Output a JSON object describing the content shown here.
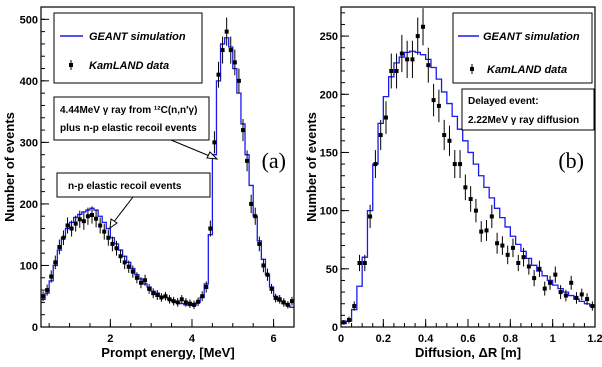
{
  "colors": {
    "simulation": "#1a1aee",
    "data": "#000000",
    "frame": "#000000"
  },
  "chart_data": [
    {
      "type": "line",
      "panel_label": "(a)",
      "xlabel": "Prompt energy, [MeV]",
      "ylabel": "Number of events",
      "xlim": [
        0.3,
        6.5
      ],
      "ylim": [
        0,
        520
      ],
      "xticks": [
        2,
        4,
        6
      ],
      "yticks": [
        0,
        100,
        200,
        300,
        400,
        500
      ],
      "xtick_labels": [
        "2",
        "4",
        "6"
      ],
      "ytick_labels": [
        "0",
        "100",
        "200",
        "300",
        "400",
        "500"
      ],
      "legend": {
        "position": "top-left",
        "entries": [
          "GEANT simulation",
          "KamLAND data"
        ]
      },
      "annotations": {
        "carbon_line1": "4.44MeV γ ray from ¹²C(n,n′γ)",
        "carbon_line2": "plus n-p elastic recoil events",
        "recoil": "n-p elastic recoil events"
      },
      "series": [
        {
          "name": "GEANT simulation",
          "style": "step",
          "bin_width": 0.1,
          "x": [
            0.3,
            0.4,
            0.5,
            0.6,
            0.7,
            0.8,
            0.9,
            1.0,
            1.1,
            1.2,
            1.3,
            1.4,
            1.5,
            1.6,
            1.7,
            1.8,
            1.9,
            2.0,
            2.1,
            2.2,
            2.3,
            2.4,
            2.5,
            2.6,
            2.7,
            2.8,
            2.9,
            3.0,
            3.1,
            3.2,
            3.3,
            3.4,
            3.5,
            3.6,
            3.7,
            3.8,
            3.9,
            4.0,
            4.1,
            4.2,
            4.3,
            4.4,
            4.5,
            4.6,
            4.7,
            4.8,
            4.9,
            5.0,
            5.1,
            5.2,
            5.3,
            5.4,
            5.5,
            5.6,
            5.7,
            5.8,
            5.9,
            6.0,
            6.1,
            6.2,
            6.3,
            6.4
          ],
          "values": [
            45,
            55,
            75,
            100,
            125,
            145,
            160,
            170,
            178,
            183,
            187,
            190,
            193,
            190,
            180,
            170,
            160,
            145,
            135,
            125,
            115,
            105,
            95,
            85,
            78,
            70,
            65,
            58,
            55,
            50,
            48,
            45,
            42,
            40,
            38,
            36,
            35,
            35,
            40,
            48,
            70,
            150,
            280,
            400,
            460,
            470,
            455,
            420,
            380,
            330,
            280,
            230,
            180,
            140,
            110,
            85,
            65,
            50,
            42,
            38,
            35,
            32
          ]
        },
        {
          "name": "KamLAND data",
          "style": "points",
          "x": [
            0.35,
            0.45,
            0.55,
            0.65,
            0.75,
            0.85,
            0.95,
            1.05,
            1.15,
            1.25,
            1.35,
            1.45,
            1.55,
            1.65,
            1.75,
            1.85,
            1.95,
            2.05,
            2.15,
            2.25,
            2.35,
            2.45,
            2.55,
            2.65,
            2.75,
            2.85,
            2.95,
            3.05,
            3.15,
            3.25,
            3.35,
            3.45,
            3.55,
            3.65,
            3.75,
            3.85,
            3.95,
            4.05,
            4.15,
            4.25,
            4.35,
            4.45,
            4.55,
            4.65,
            4.75,
            4.85,
            4.95,
            5.05,
            5.15,
            5.25,
            5.35,
            5.45,
            5.55,
            5.65,
            5.75,
            5.85,
            5.95,
            6.05,
            6.15,
            6.25,
            6.35,
            6.45
          ],
          "values": [
            50,
            60,
            82,
            105,
            130,
            145,
            165,
            160,
            168,
            175,
            172,
            180,
            182,
            176,
            165,
            155,
            145,
            135,
            128,
            115,
            105,
            98,
            90,
            80,
            72,
            76,
            62,
            55,
            52,
            48,
            50,
            45,
            42,
            40,
            45,
            40,
            38,
            36,
            41,
            50,
            65,
            160,
            300,
            410,
            450,
            480,
            450,
            430,
            400,
            320,
            270,
            200,
            180,
            135,
            100,
            85,
            62,
            47,
            45,
            40,
            36,
            42
          ],
          "errors": [
            8,
            9,
            10,
            11,
            12,
            12,
            13,
            13,
            13,
            14,
            14,
            14,
            14,
            14,
            13,
            13,
            13,
            12,
            12,
            11,
            11,
            10,
            10,
            9,
            9,
            9,
            8,
            8,
            8,
            7,
            7,
            7,
            7,
            7,
            7,
            7,
            7,
            7,
            7,
            8,
            9,
            13,
            18,
            21,
            22,
            23,
            22,
            21,
            20,
            18,
            17,
            15,
            14,
            12,
            11,
            10,
            8,
            7,
            7,
            7,
            6,
            7
          ]
        }
      ]
    },
    {
      "type": "line",
      "panel_label": "(b)",
      "xlabel": "Diffusion, ΔR [m]",
      "ylabel": "Number of events",
      "xlim": [
        0,
        1.2
      ],
      "ylim": [
        0,
        275
      ],
      "xticks": [
        0,
        0.2,
        0.4,
        0.6,
        0.8,
        1.0,
        1.2
      ],
      "yticks": [
        0,
        50,
        100,
        150,
        200,
        250
      ],
      "xtick_labels": [
        "0",
        "0.2",
        "0.4",
        "0.6",
        "0.8",
        "1",
        "1.2"
      ],
      "ytick_labels": [
        "0",
        "50",
        "100",
        "150",
        "200",
        "250"
      ],
      "legend": {
        "position": "top-right",
        "entries": [
          "GEANT simulation",
          "KamLAND data"
        ]
      },
      "annotations": {
        "delayed_line1": "Delayed event:",
        "delayed_line2": "2.22MeV γ ray diffusion"
      },
      "series": [
        {
          "name": "GEANT simulation",
          "style": "step",
          "bin_width": 0.025,
          "x": [
            0.0,
            0.025,
            0.05,
            0.075,
            0.1,
            0.125,
            0.15,
            0.175,
            0.2,
            0.225,
            0.25,
            0.275,
            0.3,
            0.325,
            0.35,
            0.375,
            0.4,
            0.425,
            0.45,
            0.475,
            0.5,
            0.525,
            0.55,
            0.575,
            0.6,
            0.625,
            0.65,
            0.675,
            0.7,
            0.725,
            0.75,
            0.775,
            0.8,
            0.825,
            0.85,
            0.875,
            0.9,
            0.925,
            0.95,
            0.975,
            1.0,
            1.025,
            1.05,
            1.075,
            1.1,
            1.125,
            1.15,
            1.175
          ],
          "values": [
            3,
            5,
            15,
            35,
            60,
            100,
            140,
            175,
            198,
            215,
            227,
            232,
            236,
            237,
            236,
            234,
            230,
            223,
            213,
            202,
            192,
            181,
            170,
            160,
            150,
            140,
            130,
            120,
            111,
            102,
            94,
            86,
            78,
            71,
            65,
            59,
            53,
            48,
            44,
            40,
            36,
            33,
            30,
            27,
            24,
            22,
            20,
            18
          ]
        },
        {
          "name": "KamLAND data",
          "style": "points",
          "x": [
            0.0125,
            0.0375,
            0.0625,
            0.0875,
            0.1125,
            0.1375,
            0.1625,
            0.1875,
            0.2125,
            0.2375,
            0.2625,
            0.2875,
            0.3125,
            0.3375,
            0.3625,
            0.3875,
            0.4125,
            0.4375,
            0.4625,
            0.4875,
            0.5125,
            0.5375,
            0.5625,
            0.5875,
            0.6125,
            0.6375,
            0.6625,
            0.6875,
            0.7125,
            0.7375,
            0.7625,
            0.7875,
            0.8125,
            0.8375,
            0.8625,
            0.8875,
            0.9125,
            0.9375,
            0.9625,
            0.9875,
            1.0125,
            1.0375,
            1.0625,
            1.0875,
            1.1125,
            1.1375,
            1.1625,
            1.1875
          ],
          "values": [
            4,
            6,
            18,
            55,
            55,
            95,
            140,
            165,
            180,
            220,
            220,
            235,
            230,
            230,
            250,
            258,
            225,
            195,
            190,
            165,
            160,
            140,
            140,
            120,
            110,
            100,
            82,
            83,
            95,
            72,
            70,
            62,
            68,
            55,
            60,
            52,
            42,
            50,
            33,
            38,
            45,
            30,
            27,
            38,
            25,
            28,
            24,
            18
          ],
          "errors": [
            2,
            3,
            4,
            7,
            7,
            10,
            12,
            13,
            14,
            15,
            15,
            16,
            16,
            16,
            16,
            16,
            15,
            14,
            14,
            13,
            13,
            12,
            12,
            11,
            11,
            10,
            9,
            9,
            10,
            9,
            8,
            8,
            8,
            7,
            8,
            7,
            7,
            7,
            6,
            6,
            7,
            6,
            5,
            6,
            5,
            5,
            5,
            4
          ]
        }
      ]
    }
  ]
}
